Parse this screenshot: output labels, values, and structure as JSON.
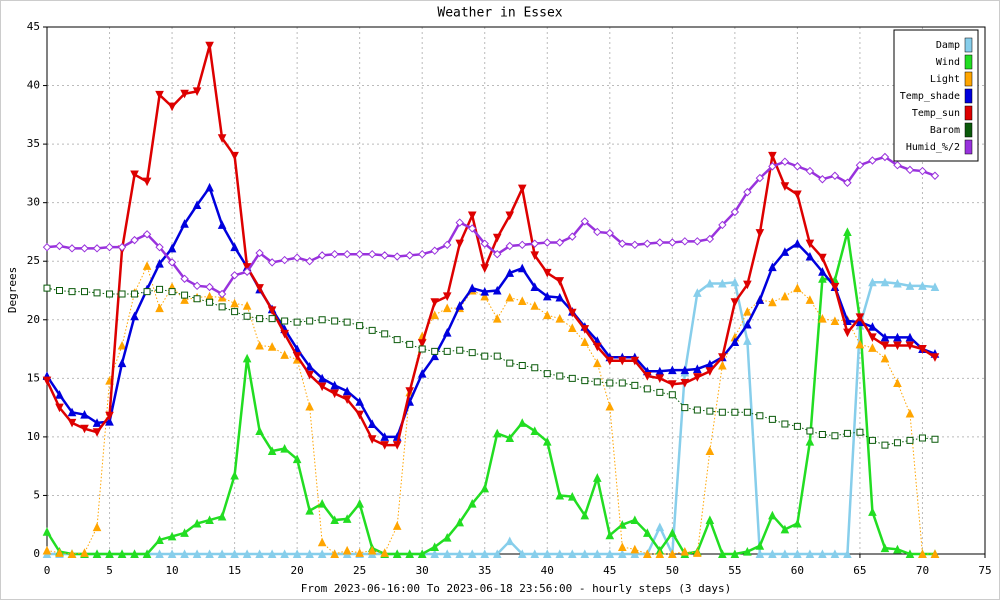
{
  "chart_data": {
    "type": "line",
    "title": "Weather in Essex",
    "y_label": "Degrees",
    "x_label": "From 2023-06-16:00 To 2023-06-18 23:56:00 - hourly steps (3 days)",
    "x": [
      0,
      1,
      2,
      3,
      4,
      5,
      6,
      7,
      8,
      9,
      10,
      11,
      12,
      13,
      14,
      15,
      16,
      17,
      18,
      19,
      20,
      21,
      22,
      23,
      24,
      25,
      26,
      27,
      28,
      29,
      30,
      31,
      32,
      33,
      34,
      35,
      36,
      37,
      38,
      39,
      40,
      41,
      42,
      43,
      44,
      45,
      46,
      47,
      48,
      49,
      50,
      51,
      52,
      53,
      54,
      55,
      56,
      57,
      58,
      59,
      60,
      61,
      62,
      63,
      64,
      65,
      66,
      67,
      68,
      69,
      70,
      71
    ],
    "xlim": [
      0,
      75
    ],
    "xticks": [
      0,
      5,
      10,
      15,
      20,
      25,
      30,
      35,
      40,
      45,
      50,
      55,
      60,
      65,
      70,
      75
    ],
    "ylim": [
      0,
      45
    ],
    "yticks": [
      0,
      5,
      10,
      15,
      20,
      25,
      30,
      35,
      40,
      45
    ],
    "grid": true,
    "legend": "upper right",
    "series": [
      {
        "name": "Damp",
        "color": "#87ceeb",
        "marker": "triangle",
        "line_style": "solid",
        "values": [
          0,
          0,
          0,
          0,
          0,
          0,
          0,
          0,
          0,
          0,
          0,
          0,
          0,
          0,
          0,
          0,
          0,
          0,
          0,
          0,
          0,
          0,
          0,
          0,
          0,
          0,
          0,
          0,
          0,
          0,
          0,
          0,
          0,
          0,
          0,
          0,
          0,
          1.1,
          0,
          0,
          0,
          0,
          0,
          0,
          0,
          0,
          0,
          0,
          0,
          2.3,
          0,
          15.5,
          22.3,
          23.1,
          23.1,
          23.2,
          18.2,
          0,
          0,
          0,
          0,
          0,
          0,
          0,
          0,
          19.5,
          23.2,
          23.2,
          23.1,
          22.9,
          22.9,
          22.8
        ]
      },
      {
        "name": "Wind",
        "color": "#22dd22",
        "marker": "triangle",
        "line_style": "solid",
        "values": [
          1.9,
          0.2,
          0,
          0,
          0,
          0,
          0,
          0,
          0,
          1.2,
          1.5,
          1.8,
          2.6,
          2.9,
          3.2,
          6.7,
          16.7,
          10.5,
          8.8,
          9.0,
          8.1,
          3.7,
          4.3,
          2.9,
          3.0,
          4.3,
          0.5,
          0,
          0,
          0,
          0,
          0.6,
          1.4,
          2.7,
          4.3,
          5.6,
          10.3,
          9.9,
          11.2,
          10.5,
          9.6,
          5.0,
          4.9,
          3.3,
          6.5,
          1.6,
          2.5,
          2.9,
          1.8,
          0.3,
          1.8,
          0,
          0.2,
          2.9,
          0,
          0,
          0.2,
          0.7,
          3.3,
          2.1,
          2.6,
          9.6,
          23.5,
          23.4,
          27.5,
          20.0,
          3.6,
          0.5,
          0.4,
          0,
          0,
          0
        ]
      },
      {
        "name": "Light",
        "color": "#ffa500",
        "marker": "triangle",
        "line_style": "dotted",
        "values": [
          0.3,
          0.1,
          0,
          0.1,
          2.3,
          14.8,
          17.8,
          22.3,
          24.6,
          21.0,
          22.8,
          21.7,
          21.9,
          22.0,
          21.9,
          21.4,
          21.2,
          17.8,
          17.7,
          17.0,
          16.6,
          12.6,
          1.0,
          0,
          0.3,
          0.1,
          0.3,
          0.1,
          2.4,
          13.8,
          18.6,
          20.4,
          21.0,
          21.0,
          22.5,
          22.0,
          20.1,
          21.9,
          21.6,
          21.2,
          20.4,
          20.1,
          19.3,
          18.1,
          16.3,
          12.6,
          0.6,
          0.4,
          0,
          0,
          0,
          0.2,
          0.1,
          8.8,
          16.1,
          18.5,
          20.7,
          21.7,
          21.5,
          22.0,
          22.7,
          21.7,
          20.1,
          19.9,
          20.0,
          17.9,
          17.6,
          16.7,
          14.6,
          12.0,
          0,
          0
        ]
      },
      {
        "name": "Temp_shade",
        "color": "#0000dd",
        "marker": "triangle",
        "line_style": "solid",
        "values": [
          15.2,
          13.6,
          12.1,
          11.9,
          11.2,
          11.3,
          16.3,
          20.3,
          22.6,
          24.8,
          26.1,
          28.2,
          29.8,
          31.3,
          28.1,
          26.2,
          24.5,
          22.6,
          20.9,
          19.2,
          17.5,
          16.0,
          15.0,
          14.4,
          13.9,
          13.0,
          11.1,
          10.0,
          10.0,
          13.0,
          15.4,
          16.9,
          18.9,
          21.2,
          22.7,
          22.4,
          22.5,
          24.0,
          24.4,
          22.8,
          22.0,
          21.9,
          20.7,
          19.4,
          18.2,
          16.8,
          16.8,
          16.8,
          15.6,
          15.6,
          15.7,
          15.7,
          15.8,
          16.2,
          16.8,
          18.1,
          19.6,
          21.7,
          24.5,
          25.8,
          26.5,
          25.4,
          24.1,
          22.8,
          19.9,
          19.8,
          19.4,
          18.5,
          18.5,
          18.5,
          17.5,
          17.1
        ]
      },
      {
        "name": "Temp_sun",
        "color": "#dd0000",
        "marker": "down",
        "line_style": "solid",
        "values": [
          14.8,
          12.5,
          11.2,
          10.7,
          10.4,
          11.8,
          26.0,
          32.4,
          31.8,
          39.2,
          38.2,
          39.3,
          39.5,
          43.4,
          35.5,
          34.0,
          24.5,
          22.7,
          20.8,
          18.8,
          16.9,
          15.3,
          14.3,
          13.7,
          13.2,
          11.9,
          9.8,
          9.3,
          9.3,
          13.9,
          18.0,
          21.5,
          22.0,
          26.5,
          28.9,
          24.4,
          27.0,
          28.9,
          31.2,
          25.5,
          24.0,
          23.3,
          20.6,
          19.2,
          17.7,
          16.5,
          16.5,
          16.5,
          15.2,
          15.0,
          14.5,
          14.6,
          15.1,
          15.6,
          16.8,
          21.5,
          23.0,
          27.4,
          34.0,
          31.4,
          30.7,
          26.5,
          25.3,
          22.8,
          18.9,
          20.2,
          18.5,
          17.8,
          17.8,
          17.8,
          17.5,
          16.8
        ]
      },
      {
        "name": "Barom",
        "color": "#0a5a0a",
        "marker": "square",
        "line_style": "dotted",
        "values": [
          22.7,
          22.5,
          22.4,
          22.4,
          22.3,
          22.2,
          22.2,
          22.2,
          22.4,
          22.6,
          22.4,
          22.1,
          21.8,
          21.5,
          21.1,
          20.7,
          20.3,
          20.1,
          20.1,
          19.9,
          19.8,
          19.9,
          20.0,
          19.9,
          19.8,
          19.5,
          19.1,
          18.8,
          18.3,
          17.9,
          17.5,
          17.3,
          17.3,
          17.4,
          17.2,
          16.9,
          16.9,
          16.3,
          16.1,
          15.9,
          15.4,
          15.2,
          15.0,
          14.8,
          14.7,
          14.6,
          14.6,
          14.4,
          14.1,
          13.8,
          13.6,
          12.5,
          12.3,
          12.2,
          12.1,
          12.1,
          12.1,
          11.8,
          11.5,
          11.1,
          10.9,
          10.5,
          10.2,
          10.1,
          10.3,
          10.4,
          9.7,
          9.3,
          9.5,
          9.7,
          9.9,
          9.8
        ]
      },
      {
        "name": "Humid_%/2",
        "color": "#9932dd",
        "marker": "star",
        "line_style": "solid",
        "values": [
          26.2,
          26.3,
          26.1,
          26.1,
          26.1,
          26.2,
          26.2,
          26.8,
          27.3,
          26.2,
          24.9,
          23.5,
          22.9,
          22.8,
          22.2,
          23.8,
          24.1,
          25.7,
          24.9,
          25.1,
          25.3,
          25.0,
          25.5,
          25.6,
          25.6,
          25.6,
          25.6,
          25.5,
          25.4,
          25.5,
          25.6,
          25.9,
          26.4,
          28.3,
          27.8,
          26.5,
          25.6,
          26.3,
          26.4,
          26.5,
          26.6,
          26.6,
          27.1,
          28.4,
          27.5,
          27.4,
          26.5,
          26.4,
          26.5,
          26.6,
          26.6,
          26.7,
          26.7,
          26.9,
          28.1,
          29.2,
          30.9,
          32.1,
          33.1,
          33.5,
          33.1,
          32.7,
          32.0,
          32.3,
          31.7,
          33.2,
          33.6,
          33.9,
          33.2,
          32.8,
          32.7,
          32.3
        ]
      }
    ]
  }
}
